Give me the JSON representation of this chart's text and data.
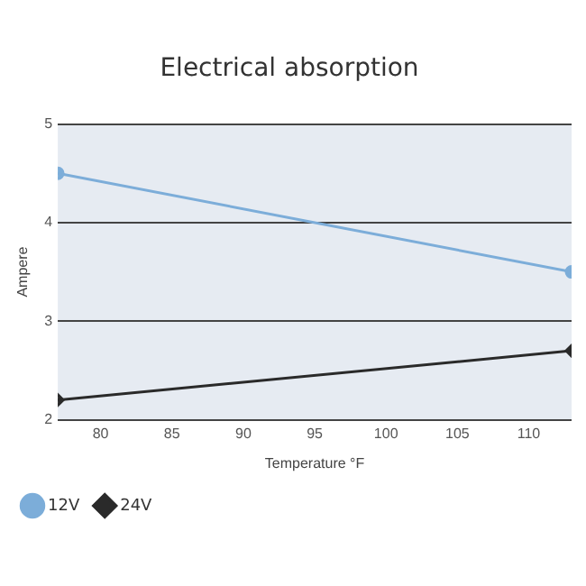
{
  "chart_data": {
    "type": "line",
    "title": "Electrical absorption",
    "xlabel": "Temperature °F",
    "ylabel": "Ampere",
    "x": [
      77,
      113
    ],
    "xlim": [
      77,
      113
    ],
    "xticks": [
      80,
      85,
      90,
      95,
      100,
      105,
      110
    ],
    "ylim": [
      2,
      5
    ],
    "yticks": [
      2,
      3,
      4,
      5
    ],
    "grid": "y",
    "legend": "bottom",
    "line_style": "solid",
    "series": [
      {
        "name": "12V",
        "color": "#7cadd9",
        "values": [
          4.5,
          3.5
        ],
        "marker": "circle"
      },
      {
        "name": "24V",
        "color": "#2a2a2a",
        "values": [
          2.2,
          2.7
        ],
        "marker": "diamond"
      }
    ]
  }
}
